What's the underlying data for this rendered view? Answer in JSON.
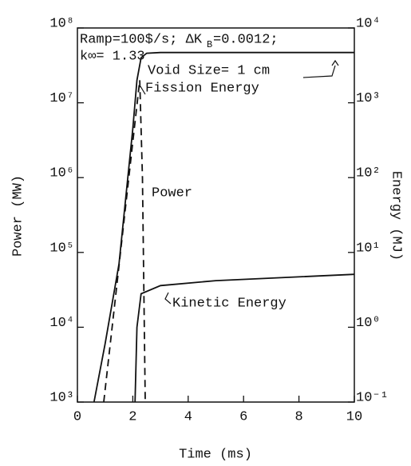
{
  "chart_data": {
    "type": "line",
    "xlabel": "Time (ms)",
    "ylabel": "Power (MW)",
    "y2label": "Energy (MJ)",
    "xlim": [
      0,
      10
    ],
    "xticks": [
      0,
      2,
      4,
      6,
      8,
      10
    ],
    "ylim": [
      1000,
      100000000
    ],
    "yscale": "log",
    "yticks": [
      {
        "value": 1000,
        "label": "10³"
      },
      {
        "value": 10000,
        "label": "10⁴"
      },
      {
        "value": 100000,
        "label": "10⁵"
      },
      {
        "value": 1000000,
        "label": "10⁶"
      },
      {
        "value": 10000000,
        "label": "10⁷"
      },
      {
        "value": 100000000,
        "label": "10⁸"
      }
    ],
    "y2lim": [
      0.1,
      10000
    ],
    "y2scale": "log",
    "y2ticks": [
      {
        "value": 0.1,
        "label": "10⁻¹"
      },
      {
        "value": 1,
        "label": "10⁰"
      },
      {
        "value": 10,
        "label": "10¹"
      },
      {
        "value": 100,
        "label": "10²"
      },
      {
        "value": 1000,
        "label": "10³"
      },
      {
        "value": 10000,
        "label": "10⁴"
      }
    ],
    "annotations": [
      "Ramp=100$/s; ΔK",
      "B",
      "=0.0012;",
      "k∞= 1.33",
      "Void Size= 1 cm",
      "Fission Energy",
      "Power",
      "Kinetic Energy"
    ],
    "series": [
      {
        "name": "Power",
        "color": "#111111",
        "style": "dashed",
        "axis": "y",
        "x": [
          0.95,
          1.5,
          2.0,
          2.25,
          2.35,
          2.45
        ],
        "values": [
          1000,
          66000,
          3000000,
          20000000,
          1000000,
          1000
        ]
      },
      {
        "name": "Fission Energy",
        "color": "#111111",
        "style": "solid",
        "axis": "y2",
        "x": [
          0.6,
          1.0,
          1.5,
          2.0,
          2.15,
          2.3,
          2.5,
          3,
          10
        ],
        "values": [
          0.1,
          0.6,
          7,
          450,
          2000,
          4000,
          4600,
          4700,
          4700
        ]
      },
      {
        "name": "Kinetic Energy",
        "color": "#111111",
        "style": "solid",
        "axis": "y2",
        "x": [
          2.08,
          2.15,
          2.3,
          3,
          5,
          10
        ],
        "values": [
          0.1,
          1,
          2.8,
          3.6,
          4.2,
          5.1
        ]
      }
    ]
  }
}
